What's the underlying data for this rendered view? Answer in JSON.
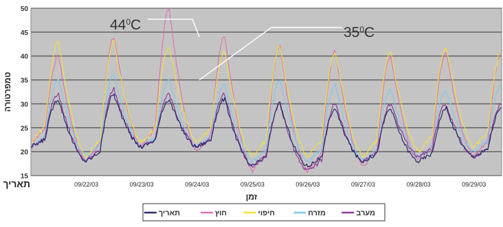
{
  "chart_data": {
    "type": "line",
    "ylabel": "טמפרטורה",
    "xlabel": "זמן",
    "x_axis_name": "תאריך",
    "ylim": [
      15,
      50
    ],
    "yticks": [
      15,
      20,
      25,
      30,
      35,
      40,
      45,
      50
    ],
    "xlim": [
      "09/21/03 00:00",
      "09/29/03 12:00"
    ],
    "xticks": [
      "09/22/03",
      "09/23/03",
      "09/24/03",
      "09/25/03",
      "09/26/03",
      "09/27/03",
      "09/28/03",
      "09/29/03"
    ],
    "grid": "horizontal",
    "legend_position": "bottom",
    "legend": [
      {
        "label": "מערב",
        "color": "#8a3a9a"
      },
      {
        "label": "מזרח",
        "color": "#7ec8e8"
      },
      {
        "label": "חיפוי",
        "color": "#f2e23a"
      },
      {
        "label": "חוץ",
        "color": "#e070b0"
      },
      {
        "label": "תאריך",
        "color": "#2a2a6a"
      }
    ],
    "annotations": [
      {
        "text": "44",
        "sup": "0",
        "unit": "C",
        "value": 44,
        "date": "09/24/03 01:00"
      },
      {
        "text": "35",
        "sup": "0",
        "unit": "C",
        "value": 35,
        "date": "09/24/03 01:00"
      }
    ],
    "series": [
      {
        "name": "חוץ",
        "color": "#e070b0",
        "daily_max": [
          40,
          44,
          50,
          44,
          42,
          41,
          40,
          41,
          41
        ],
        "daily_min": [
          22,
          18,
          21,
          20,
          16,
          16,
          17,
          18,
          19
        ]
      },
      {
        "name": "חיפוי",
        "color": "#f2e23a",
        "daily_max": [
          43,
          43,
          42,
          41,
          42,
          41,
          41,
          42,
          41
        ],
        "daily_min": [
          22,
          19,
          22,
          22,
          19,
          19,
          19,
          20,
          21
        ]
      },
      {
        "name": "מזרח",
        "color": "#7ec8e8",
        "daily_max": [
          35,
          36,
          35,
          34,
          35,
          34,
          33,
          33,
          34
        ],
        "daily_min": [
          21,
          19,
          21,
          21,
          18,
          18,
          18,
          19,
          20
        ]
      },
      {
        "name": "מערב",
        "color": "#8a3a9a",
        "daily_max": [
          32,
          33,
          32,
          32,
          30,
          30,
          30,
          30,
          30
        ],
        "daily_min": [
          21,
          18,
          21,
          21,
          17,
          16,
          18,
          19,
          19
        ]
      },
      {
        "name": "תאריך",
        "color": "#2a2a6a",
        "daily_max": [
          31,
          32,
          31,
          31,
          30,
          29,
          29,
          29,
          29
        ],
        "daily_min": [
          21,
          18,
          21,
          21,
          17,
          17,
          18,
          18,
          19
        ]
      }
    ]
  }
}
